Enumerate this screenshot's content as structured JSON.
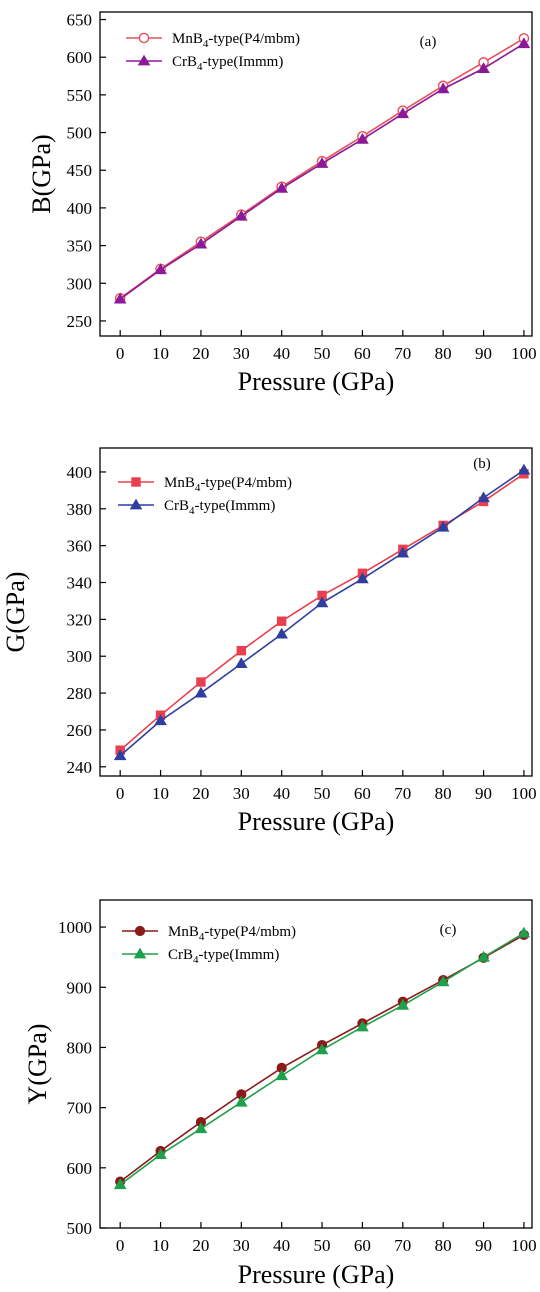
{
  "chart_data": [
    {
      "type": "line",
      "panel_label": "(a)",
      "xlabel": "Pressure (GPa)",
      "ylabel": "B(GPa)",
      "xlim": [
        -5,
        102
      ],
      "ylim": [
        230,
        660
      ],
      "x_ticks": [
        0,
        10,
        20,
        30,
        40,
        50,
        60,
        70,
        80,
        90,
        100
      ],
      "y_ticks": [
        250,
        300,
        350,
        400,
        450,
        500,
        550,
        600,
        650
      ],
      "x": [
        0,
        10,
        20,
        30,
        40,
        50,
        60,
        70,
        80,
        90,
        100
      ],
      "legend_position": "top-left",
      "series": [
        {
          "name": "MnB4-type(P4/mbm)",
          "name_main": "MnB",
          "name_sub": "4",
          "name_tail": "-type(P4/mbm)",
          "color": "#e8505b",
          "marker": "open-circle",
          "values": [
            280,
            319,
            355,
            391,
            428,
            462,
            495,
            529,
            562,
            593,
            625
          ]
        },
        {
          "name": "CrB4-type(Immm)",
          "name_main": "CrB",
          "name_sub": "4",
          "name_tail": "-type(Immm)",
          "color": "#8b1a9a",
          "marker": "filled-triangle",
          "values": [
            279,
            318,
            352,
            389,
            426,
            459,
            491,
            525,
            558,
            585,
            618
          ]
        }
      ]
    },
    {
      "type": "line",
      "panel_label": "(b)",
      "xlabel": "Pressure (GPa)",
      "ylabel": "G(GPa)",
      "xlim": [
        -5,
        102
      ],
      "ylim": [
        235,
        413
      ],
      "x_ticks": [
        0,
        10,
        20,
        30,
        40,
        50,
        60,
        70,
        80,
        90,
        100
      ],
      "y_ticks": [
        240,
        260,
        280,
        300,
        320,
        340,
        360,
        380,
        400
      ],
      "x": [
        0,
        10,
        20,
        30,
        40,
        50,
        60,
        70,
        80,
        90,
        100
      ],
      "legend_position": "top-left",
      "series": [
        {
          "name": "MnB4-type(P4/mbm)",
          "name_main": "MnB",
          "name_sub": "4",
          "name_tail": "-type(P4/mbm)",
          "color": "#e8404e",
          "marker": "filled-square",
          "values": [
            249,
            268,
            286,
            303,
            319,
            333,
            345,
            358,
            371,
            384,
            399
          ]
        },
        {
          "name": "CrB4-type(Immm)",
          "name_main": "CrB",
          "name_sub": "4",
          "name_tail": "-type(Immm)",
          "color": "#2f3f9f",
          "marker": "filled-triangle",
          "values": [
            246,
            265,
            280,
            296,
            312,
            329,
            342,
            356,
            370,
            386,
            401
          ]
        }
      ]
    },
    {
      "type": "line",
      "panel_label": "(c)",
      "xlabel": "Pressure (GPa)",
      "ylabel": "Y(GPa)",
      "xlim": [
        -5,
        102
      ],
      "ylim": [
        500,
        1045
      ],
      "x_ticks": [
        0,
        10,
        20,
        30,
        40,
        50,
        60,
        70,
        80,
        90,
        100
      ],
      "y_ticks": [
        500,
        600,
        700,
        800,
        900,
        1000
      ],
      "x": [
        0,
        10,
        20,
        30,
        40,
        50,
        60,
        70,
        80,
        90,
        100
      ],
      "legend_position": "top-left",
      "series": [
        {
          "name": "MnB4-type(P4/mbm)",
          "name_main": "MnB",
          "name_sub": "4",
          "name_tail": "-type(P4/mbm)",
          "color": "#8b1a1a",
          "marker": "filled-circle",
          "values": [
            577,
            628,
            676,
            722,
            766,
            804,
            840,
            876,
            912,
            949,
            987
          ]
        },
        {
          "name": "CrB4-type(Immm)",
          "name_main": "CrB",
          "name_sub": "4",
          "name_tail": "-type(Immm)",
          "color": "#1fa04a",
          "marker": "filled-triangle",
          "values": [
            572,
            622,
            665,
            709,
            753,
            796,
            834,
            870,
            909,
            950,
            990
          ]
        }
      ]
    }
  ]
}
